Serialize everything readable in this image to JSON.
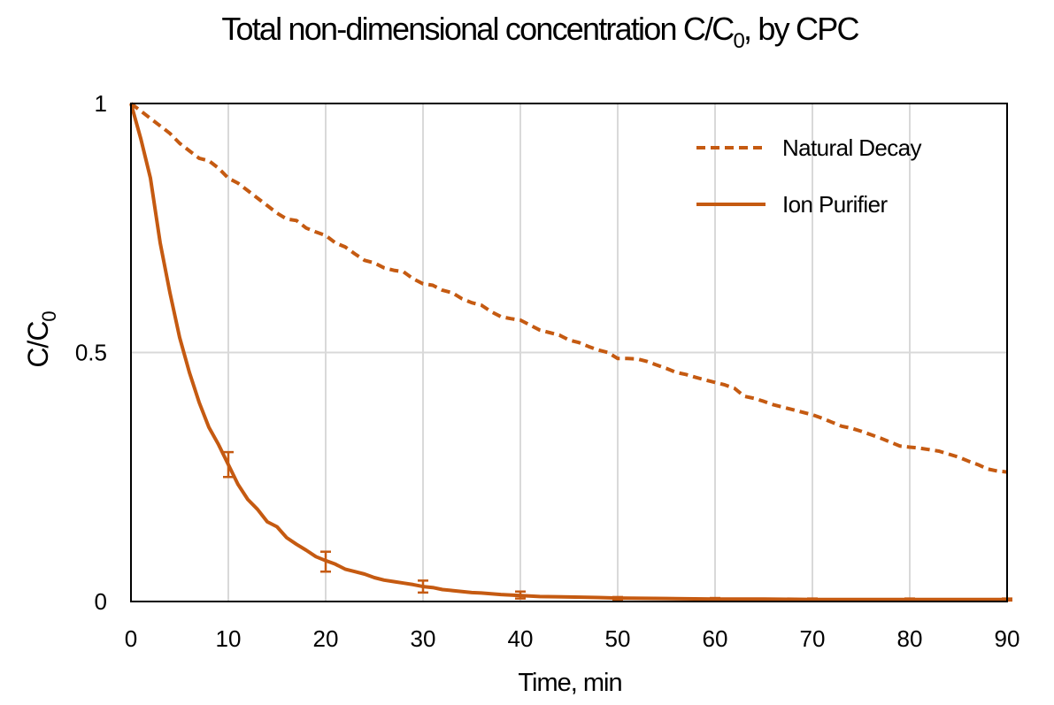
{
  "chart_data": {
    "type": "line",
    "title": "Total non-dimensional concentration C/C",
    "title_sub": "0",
    "title_suffix": ", by CPC",
    "xlabel": "Time, min",
    "ylabel": "C/C",
    "ylabel_sub": "0",
    "xlim": [
      0,
      90
    ],
    "ylim": [
      0,
      1
    ],
    "xticks": [
      0,
      10,
      20,
      30,
      40,
      50,
      60,
      70,
      80,
      90
    ],
    "xtick_labels": [
      "0",
      "10",
      "20",
      "30",
      "40",
      "50",
      "60",
      "70",
      "80",
      "90"
    ],
    "yticks": [
      0,
      0.5,
      1
    ],
    "ytick_labels": [
      "0",
      "0.5",
      "1"
    ],
    "grid": "vertical",
    "legend_position": "top-right",
    "colors": {
      "series": "#C55A11",
      "grid": "#d9d9d9",
      "frame": "#000000"
    },
    "series": [
      {
        "name": "Natural Decay",
        "style": "dashed",
        "x": [
          0,
          1,
          2,
          3,
          4,
          5,
          6,
          7,
          8,
          9,
          10,
          11,
          12,
          13,
          14,
          15,
          16,
          17,
          18,
          19,
          20,
          21,
          22,
          23,
          24,
          25,
          26,
          27,
          28,
          29,
          30,
          31,
          32,
          33,
          34,
          35,
          36,
          37,
          38,
          39,
          40,
          41,
          42,
          43,
          44,
          45,
          46,
          47,
          48,
          49,
          50,
          51,
          52,
          53,
          54,
          55,
          56,
          57,
          58,
          59,
          60,
          61,
          62,
          63,
          64,
          65,
          66,
          67,
          68,
          69,
          70,
          71,
          72,
          73,
          74,
          75,
          76,
          77,
          78,
          79,
          80,
          81,
          82,
          83,
          84,
          85,
          86,
          87,
          88,
          89,
          90
        ],
        "y": [
          1.0,
          0.985,
          0.97,
          0.955,
          0.94,
          0.92,
          0.905,
          0.89,
          0.885,
          0.87,
          0.85,
          0.84,
          0.825,
          0.81,
          0.795,
          0.78,
          0.768,
          0.765,
          0.75,
          0.742,
          0.735,
          0.72,
          0.712,
          0.698,
          0.685,
          0.68,
          0.67,
          0.665,
          0.662,
          0.648,
          0.638,
          0.635,
          0.625,
          0.62,
          0.608,
          0.6,
          0.595,
          0.582,
          0.572,
          0.568,
          0.565,
          0.555,
          0.545,
          0.54,
          0.535,
          0.525,
          0.52,
          0.512,
          0.505,
          0.5,
          0.488,
          0.488,
          0.487,
          0.482,
          0.475,
          0.468,
          0.46,
          0.456,
          0.45,
          0.445,
          0.44,
          0.435,
          0.428,
          0.412,
          0.408,
          0.402,
          0.395,
          0.39,
          0.385,
          0.38,
          0.375,
          0.368,
          0.36,
          0.352,
          0.348,
          0.342,
          0.335,
          0.328,
          0.32,
          0.312,
          0.31,
          0.308,
          0.305,
          0.302,
          0.296,
          0.29,
          0.282,
          0.275,
          0.266,
          0.262,
          0.26
        ]
      },
      {
        "name": "Ion Purifier",
        "style": "solid",
        "x": [
          0,
          1,
          2,
          3,
          4,
          5,
          6,
          7,
          8,
          9,
          10,
          11,
          12,
          13,
          14,
          15,
          16,
          17,
          18,
          19,
          20,
          21,
          22,
          23,
          24,
          25,
          26,
          27,
          28,
          29,
          30,
          31,
          32,
          33,
          34,
          35,
          36,
          38,
          40,
          42,
          45,
          48,
          50,
          55,
          60,
          65,
          70,
          75,
          80,
          85,
          90
        ],
        "y": [
          1.0,
          0.93,
          0.85,
          0.72,
          0.62,
          0.53,
          0.46,
          0.4,
          0.35,
          0.315,
          0.275,
          0.235,
          0.205,
          0.185,
          0.16,
          0.15,
          0.128,
          0.115,
          0.103,
          0.09,
          0.082,
          0.075,
          0.065,
          0.06,
          0.055,
          0.048,
          0.043,
          0.04,
          0.037,
          0.034,
          0.03,
          0.028,
          0.024,
          0.022,
          0.02,
          0.018,
          0.017,
          0.014,
          0.012,
          0.01,
          0.009,
          0.008,
          0.007,
          0.006,
          0.005,
          0.005,
          0.004,
          0.004,
          0.004,
          0.004,
          0.004
        ],
        "error_bars": [
          {
            "x": 10,
            "y": 0.275,
            "err": 0.025
          },
          {
            "x": 20,
            "y": 0.08,
            "err": 0.02
          },
          {
            "x": 30,
            "y": 0.03,
            "err": 0.012
          },
          {
            "x": 40,
            "y": 0.013,
            "err": 0.007
          },
          {
            "x": 50,
            "y": 0.006,
            "err": 0.003
          },
          {
            "x": 60,
            "y": 0.005,
            "err": 0.002
          },
          {
            "x": 70,
            "y": 0.004,
            "err": 0.002
          },
          {
            "x": 80,
            "y": 0.004,
            "err": 0.002
          },
          {
            "x": 90,
            "y": 0.004,
            "err": 0.002
          }
        ]
      }
    ]
  }
}
